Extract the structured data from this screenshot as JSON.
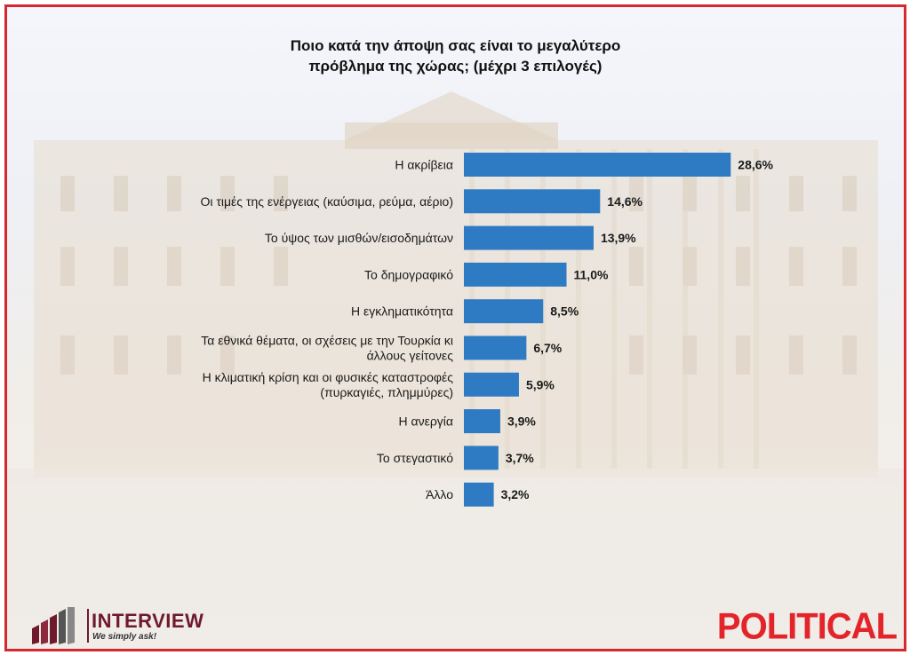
{
  "colors": {
    "bar": "#2e7bc3",
    "frame": "#d7282f",
    "political": "#e3252b",
    "brand": "#6e1a2c"
  },
  "chart_data": {
    "type": "bar",
    "orientation": "horizontal",
    "title": "Ποιο κατά την άποψη σας είναι το μεγαλύτερο πρόβλημα της χώρας; (μέχρι 3 επιλογές)",
    "title_lines": [
      "Ποιο κατά την άποψη σας είναι το μεγαλύτερο",
      "πρόβλημα της χώρας; (μέχρι 3 επιλογές)"
    ],
    "categories": [
      [
        "Η ακρίβεια"
      ],
      [
        "Οι τιμές της ενέργειας (καύσιμα, ρεύμα, αέριο)"
      ],
      [
        "Το ύψος των μισθών/εισοδημάτων"
      ],
      [
        "Το δημογραφικό"
      ],
      [
        "Η εγκληματικότητα"
      ],
      [
        "Τα εθνικά θέματα, οι σχέσεις με την Τουρκία κι",
        "άλλους γείτονες"
      ],
      [
        "Η κλιματική κρίση και οι φυσικές καταστροφές",
        "(πυρκαγιές, πλημμύρες)"
      ],
      [
        "Η ανεργία"
      ],
      [
        "Το στεγαστικό"
      ],
      [
        "Άλλο"
      ]
    ],
    "values": [
      28.6,
      14.6,
      13.9,
      11.0,
      8.5,
      6.7,
      5.9,
      3.9,
      3.7,
      3.2
    ],
    "value_labels": [
      "28,6%",
      "14,6%",
      "13,9%",
      "11,0%",
      "8,5%",
      "6,7%",
      "5,9%",
      "3,9%",
      "3,7%",
      "3,2%"
    ],
    "xlim": [
      0,
      30
    ],
    "grid": false,
    "legend": "none"
  },
  "brand": {
    "name": "INTERVIEW",
    "tagline": "We simply ask!"
  },
  "publisher": "POLITICAL"
}
